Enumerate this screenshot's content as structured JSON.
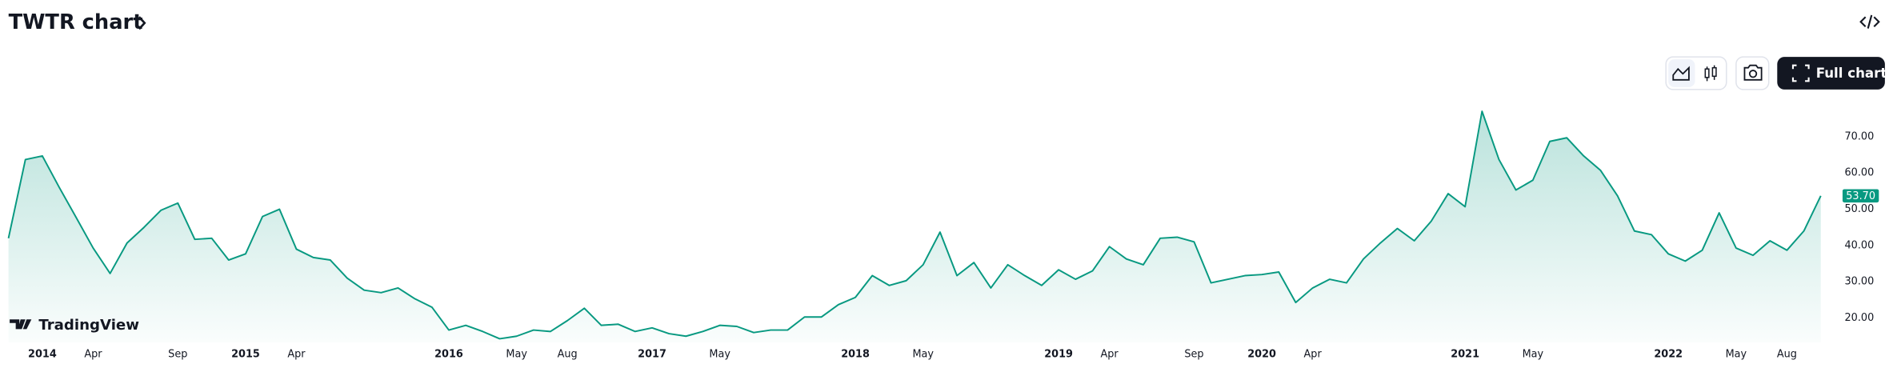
{
  "header": {
    "title": "TWTR chart",
    "logo_text": "TradingView",
    "full_chart_button": "Full chart"
  },
  "chart_data": {
    "type": "area",
    "color": "#089981",
    "x": [
      "2013-11",
      "2013-12",
      "2014-01",
      "2014-02",
      "2014-03",
      "2014-04",
      "2014-05",
      "2014-06",
      "2014-07",
      "2014-08",
      "2014-09",
      "2014-10",
      "2014-11",
      "2014-12",
      "2015-01",
      "2015-02",
      "2015-03",
      "2015-04",
      "2015-05",
      "2015-06",
      "2015-07",
      "2015-08",
      "2015-09",
      "2015-10",
      "2015-11",
      "2015-12",
      "2016-01",
      "2016-02",
      "2016-03",
      "2016-04",
      "2016-05",
      "2016-06",
      "2016-07",
      "2016-08",
      "2016-09",
      "2016-10",
      "2016-11",
      "2016-12",
      "2017-01",
      "2017-02",
      "2017-03",
      "2017-04",
      "2017-05",
      "2017-06",
      "2017-07",
      "2017-08",
      "2017-09",
      "2017-10",
      "2017-11",
      "2017-12",
      "2018-01",
      "2018-02",
      "2018-03",
      "2018-04",
      "2018-05",
      "2018-06",
      "2018-07",
      "2018-08",
      "2018-09",
      "2018-10",
      "2018-11",
      "2018-12",
      "2019-01",
      "2019-02",
      "2019-03",
      "2019-04",
      "2019-05",
      "2019-06",
      "2019-07",
      "2019-08",
      "2019-09",
      "2019-10",
      "2019-11",
      "2019-12",
      "2020-01",
      "2020-02",
      "2020-03",
      "2020-04",
      "2020-05",
      "2020-06",
      "2020-07",
      "2020-08",
      "2020-09",
      "2020-10",
      "2020-11",
      "2020-12",
      "2021-01",
      "2021-02",
      "2021-03",
      "2021-04",
      "2021-05",
      "2021-06",
      "2021-07",
      "2021-08",
      "2021-09",
      "2021-10",
      "2021-11",
      "2021-12",
      "2022-01",
      "2022-02",
      "2022-03",
      "2022-04",
      "2022-05",
      "2022-06",
      "2022-07",
      "2022-08",
      "2022-09",
      "2022-10"
    ],
    "values": [
      42,
      63.7,
      64.7,
      56,
      47.7,
      39.3,
      32.3,
      40.7,
      45,
      49.7,
      51.7,
      41.7,
      42,
      36,
      37.7,
      48,
      50,
      39,
      36.7,
      36,
      31,
      27.7,
      27,
      28.3,
      25.3,
      23,
      16.7,
      18,
      16.3,
      14.3,
      15,
      16.7,
      16.3,
      19.3,
      22.7,
      18,
      18.3,
      16.3,
      17.3,
      15.7,
      15,
      16.3,
      18,
      17.7,
      16,
      16.7,
      16.7,
      20.3,
      20.3,
      23.7,
      25.7,
      31.7,
      29,
      30.3,
      34.7,
      43.7,
      31.7,
      35.3,
      28.3,
      34.7,
      31.7,
      29,
      33.3,
      30.7,
      33,
      39.7,
      36.3,
      34.7,
      42,
      42.3,
      41,
      29.7,
      30.7,
      31.7,
      32,
      32.7,
      24.3,
      28.3,
      30.7,
      29.7,
      36.3,
      40.7,
      44.7,
      41.3,
      46.7,
      54.3,
      50.7,
      77,
      63.7,
      55.3,
      58,
      68.7,
      69.7,
      64.7,
      60.7,
      53.7,
      44,
      43,
      37.7,
      35.7,
      38.7,
      49,
      39.3,
      37.3,
      41.3,
      38.7,
      44,
      53.7
    ],
    "xlim": [
      "2013-11",
      "2022-10"
    ],
    "xticks": [
      {
        "value": "2014-01",
        "label": "2014"
      },
      {
        "value": "2014-04",
        "label": "Apr"
      },
      {
        "value": "2014-09",
        "label": "Sep"
      },
      {
        "value": "2015-01",
        "label": "2015"
      },
      {
        "value": "2015-04",
        "label": "Apr"
      },
      {
        "value": "2016-01",
        "label": "2016"
      },
      {
        "value": "2016-05",
        "label": "May"
      },
      {
        "value": "2016-08",
        "label": "Aug"
      },
      {
        "value": "2017-01",
        "label": "2017"
      },
      {
        "value": "2017-05",
        "label": "May"
      },
      {
        "value": "2018-01",
        "label": "2018"
      },
      {
        "value": "2018-05",
        "label": "May"
      },
      {
        "value": "2019-01",
        "label": "2019"
      },
      {
        "value": "2019-04",
        "label": "Apr"
      },
      {
        "value": "2019-09",
        "label": "Sep"
      },
      {
        "value": "2020-01",
        "label": "2020"
      },
      {
        "value": "2020-04",
        "label": "Apr"
      },
      {
        "value": "2021-01",
        "label": "2021"
      },
      {
        "value": "2021-05",
        "label": "May"
      },
      {
        "value": "2022-01",
        "label": "2022"
      },
      {
        "value": "2022-05",
        "label": "May"
      },
      {
        "value": "2022-08",
        "label": "Aug"
      }
    ],
    "ylim": [
      13.3,
      81
    ],
    "yticks": [
      {
        "value": 20,
        "label": "20.00"
      },
      {
        "value": 30,
        "label": "30.00"
      },
      {
        "value": 40,
        "label": "40.00"
      },
      {
        "value": 50,
        "label": "50.00"
      },
      {
        "value": 60,
        "label": "60.00"
      },
      {
        "value": 70,
        "label": "70.00"
      }
    ],
    "price_label": {
      "value": 53.7,
      "label": "53.70"
    },
    "grid": false
  }
}
